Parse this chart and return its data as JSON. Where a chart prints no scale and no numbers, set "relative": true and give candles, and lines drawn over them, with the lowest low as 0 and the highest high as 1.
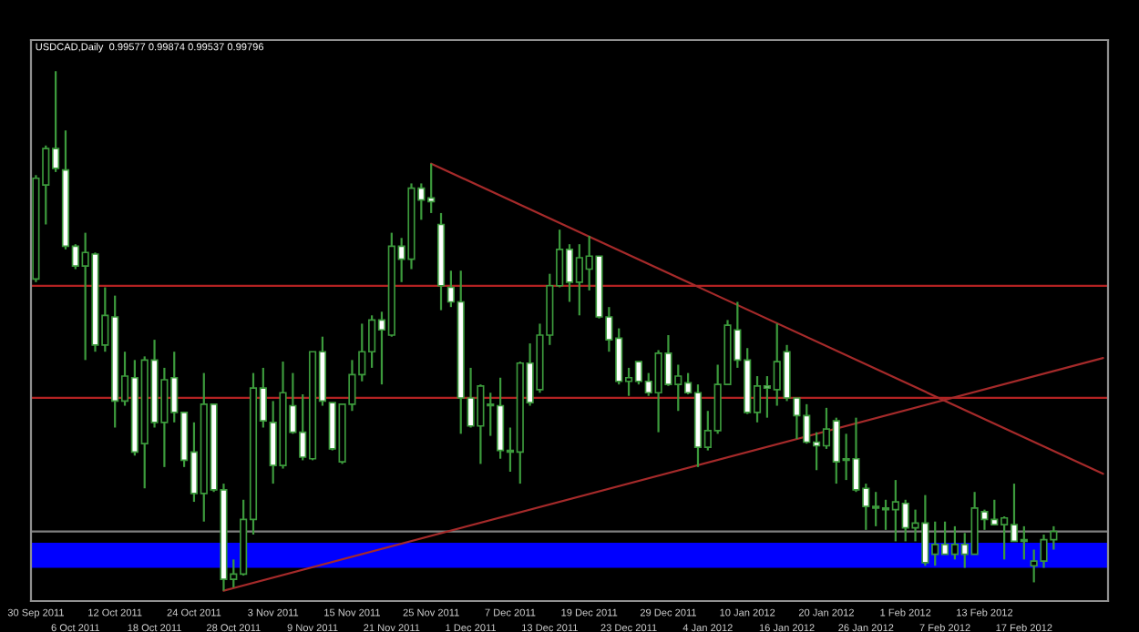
{
  "chart_data": {
    "type": "candlestick",
    "title": "USDCAD,Daily  0.99577 0.99874 0.99537 0.99796",
    "relative": true,
    "color": "#3c9a3c",
    "categories": [
      "30 Sep 2011",
      null,
      null,
      null,
      "6 Oct 2011",
      null,
      null,
      null,
      "12 Oct 2011",
      null,
      null,
      null,
      "18 Oct 2011",
      null,
      null,
      null,
      "24 Oct 2011",
      null,
      null,
      null,
      "28 Oct 2011",
      null,
      null,
      null,
      "3 Nov 2011",
      null,
      null,
      null,
      "9 Nov 2011",
      null,
      null,
      null,
      "15 Nov 2011",
      null,
      null,
      null,
      "21 Nov 2011",
      null,
      null,
      null,
      "25 Nov 2011",
      null,
      null,
      null,
      "1 Dec 2011",
      null,
      null,
      null,
      "7 Dec 2011",
      null,
      null,
      null,
      "13 Dec 2011",
      null,
      null,
      null,
      "19 Dec 2011",
      null,
      null,
      null,
      "23 Dec 2011",
      null,
      null,
      null,
      "29 Dec 2011",
      null,
      null,
      null,
      "4 Jan 2012",
      null,
      null,
      null,
      "10 Jan 2012",
      null,
      null,
      null,
      "16 Jan 2012",
      null,
      null,
      null,
      "20 Jan 2012",
      null,
      null,
      null,
      "26 Jan 2012",
      null,
      null,
      null,
      "1 Feb 2012",
      null,
      null,
      null,
      "7 Feb 2012",
      null,
      null,
      null,
      "13 Feb 2012",
      null,
      null,
      null,
      "17 Feb 2012",
      null,
      null,
      null,
      null,
      null,
      null,
      null,
      null
    ],
    "ohlc": [
      [
        0.6,
        0.8,
        0.594,
        0.794
      ],
      [
        0.781,
        0.857,
        0.705,
        0.851
      ],
      [
        0.851,
        1.0,
        0.806,
        0.813
      ],
      [
        0.81,
        0.886,
        0.657,
        0.663
      ],
      [
        0.663,
        0.667,
        0.619,
        0.625
      ],
      [
        0.625,
        0.689,
        0.444,
        0.651
      ],
      [
        0.648,
        0.651,
        0.46,
        0.473
      ],
      [
        0.473,
        0.584,
        0.46,
        0.53
      ],
      [
        0.527,
        0.568,
        0.314,
        0.365
      ],
      [
        0.365,
        0.46,
        0.356,
        0.413
      ],
      [
        0.41,
        0.444,
        0.26,
        0.267
      ],
      [
        0.283,
        0.451,
        0.197,
        0.444
      ],
      [
        0.444,
        0.483,
        0.314,
        0.324
      ],
      [
        0.324,
        0.429,
        0.238,
        0.406
      ],
      [
        0.41,
        0.46,
        0.324,
        0.343
      ],
      [
        0.343,
        0.343,
        0.238,
        0.251
      ],
      [
        0.267,
        0.324,
        0.171,
        0.187
      ],
      [
        0.187,
        0.419,
        0.133,
        0.359
      ],
      [
        0.359,
        0.359,
        0.19,
        0.194
      ],
      [
        0.194,
        0.206,
        0.0,
        0.022
      ],
      [
        0.022,
        0.06,
        0.006,
        0.032
      ],
      [
        0.032,
        0.175,
        0.029,
        0.137
      ],
      [
        0.137,
        0.419,
        0.108,
        0.39
      ],
      [
        0.39,
        0.429,
        0.314,
        0.327
      ],
      [
        0.324,
        0.365,
        0.206,
        0.241
      ],
      [
        0.241,
        0.441,
        0.235,
        0.381
      ],
      [
        0.356,
        0.419,
        0.302,
        0.305
      ],
      [
        0.305,
        0.378,
        0.251,
        0.257
      ],
      [
        0.254,
        0.46,
        0.251,
        0.46
      ],
      [
        0.46,
        0.489,
        0.356,
        0.365
      ],
      [
        0.362,
        0.362,
        0.27,
        0.273
      ],
      [
        0.248,
        0.359,
        0.244,
        0.359
      ],
      [
        0.359,
        0.444,
        0.346,
        0.416
      ],
      [
        0.416,
        0.514,
        0.403,
        0.46
      ],
      [
        0.46,
        0.53,
        0.429,
        0.521
      ],
      [
        0.521,
        0.537,
        0.397,
        0.502
      ],
      [
        0.492,
        0.689,
        0.489,
        0.663
      ],
      [
        0.663,
        0.679,
        0.594,
        0.638
      ],
      [
        0.638,
        0.784,
        0.619,
        0.775
      ],
      [
        0.775,
        0.784,
        0.714,
        0.752
      ],
      [
        0.756,
        0.822,
        0.727,
        0.749
      ],
      [
        0.705,
        0.727,
        0.54,
        0.587
      ],
      [
        0.584,
        0.616,
        0.546,
        0.556
      ],
      [
        0.556,
        0.616,
        0.302,
        0.371
      ],
      [
        0.371,
        0.429,
        0.314,
        0.317
      ],
      [
        0.317,
        0.397,
        0.244,
        0.394
      ],
      [
        0.359,
        0.381,
        0.298,
        0.356
      ],
      [
        0.356,
        0.41,
        0.254,
        0.27
      ],
      [
        0.27,
        0.314,
        0.229,
        0.267
      ],
      [
        0.267,
        0.441,
        0.206,
        0.438
      ],
      [
        0.438,
        0.476,
        0.356,
        0.362
      ],
      [
        0.387,
        0.514,
        0.381,
        0.492
      ],
      [
        0.492,
        0.61,
        0.473,
        0.587
      ],
      [
        0.587,
        0.695,
        0.584,
        0.657
      ],
      [
        0.657,
        0.667,
        0.556,
        0.594
      ],
      [
        0.594,
        0.667,
        0.53,
        0.641
      ],
      [
        0.619,
        0.683,
        0.578,
        0.644
      ],
      [
        0.644,
        0.644,
        0.524,
        0.527
      ],
      [
        0.527,
        0.546,
        0.46,
        0.483
      ],
      [
        0.486,
        0.505,
        0.397,
        0.403
      ],
      [
        0.403,
        0.429,
        0.375,
        0.41
      ],
      [
        0.441,
        0.441,
        0.397,
        0.403
      ],
      [
        0.403,
        0.419,
        0.375,
        0.381
      ],
      [
        0.381,
        0.463,
        0.305,
        0.457
      ],
      [
        0.457,
        0.492,
        0.394,
        0.397
      ],
      [
        0.397,
        0.435,
        0.346,
        0.413
      ],
      [
        0.4,
        0.419,
        0.378,
        0.381
      ],
      [
        0.381,
        0.397,
        0.238,
        0.276
      ],
      [
        0.276,
        0.346,
        0.27,
        0.308
      ],
      [
        0.308,
        0.435,
        0.302,
        0.397
      ],
      [
        0.397,
        0.521,
        0.397,
        0.511
      ],
      [
        0.502,
        0.556,
        0.429,
        0.444
      ],
      [
        0.444,
        0.467,
        0.34,
        0.343
      ],
      [
        0.343,
        0.413,
        0.324,
        0.394
      ],
      [
        0.394,
        0.413,
        0.333,
        0.39
      ],
      [
        0.387,
        0.514,
        0.356,
        0.441
      ],
      [
        0.46,
        0.473,
        0.365,
        0.371
      ],
      [
        0.371,
        0.371,
        0.292,
        0.337
      ],
      [
        0.337,
        0.359,
        0.283,
        0.286
      ],
      [
        0.286,
        0.305,
        0.232,
        0.279
      ],
      [
        0.279,
        0.352,
        0.273,
        0.311
      ],
      [
        0.327,
        0.333,
        0.206,
        0.248
      ],
      [
        0.254,
        0.302,
        0.213,
        0.251
      ],
      [
        0.254,
        0.333,
        0.19,
        0.194
      ],
      [
        0.197,
        0.206,
        0.117,
        0.162
      ],
      [
        0.162,
        0.19,
        0.124,
        0.159
      ],
      [
        0.159,
        0.175,
        0.117,
        0.156
      ],
      [
        0.156,
        0.213,
        0.095,
        0.171
      ],
      [
        0.168,
        0.175,
        0.095,
        0.121
      ],
      [
        0.121,
        0.156,
        0.095,
        0.13
      ],
      [
        0.13,
        0.184,
        0.048,
        0.054
      ],
      [
        0.07,
        0.133,
        0.048,
        0.089
      ],
      [
        0.089,
        0.133,
        0.07,
        0.07
      ],
      [
        0.07,
        0.124,
        0.06,
        0.089
      ],
      [
        0.089,
        0.111,
        0.044,
        0.07
      ],
      [
        0.07,
        0.19,
        0.07,
        0.159
      ],
      [
        0.152,
        0.156,
        0.117,
        0.137
      ],
      [
        0.137,
        0.175,
        0.127,
        0.127
      ],
      [
        0.127,
        0.143,
        0.06,
        0.14
      ],
      [
        0.127,
        0.206,
        0.095,
        0.095
      ],
      [
        0.098,
        0.124,
        0.06,
        0.095
      ],
      [
        0.048,
        0.079,
        0.016,
        0.057
      ],
      [
        0.057,
        0.108,
        0.044,
        0.098
      ],
      [
        0.098,
        0.124,
        0.079,
        0.114
      ],
      null,
      null,
      null,
      null,
      null
    ],
    "series": [
      {
        "type": "line",
        "color": "#a52a2a",
        "values": [
          null,
          null,
          null,
          null,
          null,
          null,
          null,
          null,
          null,
          null,
          null,
          null,
          null,
          null,
          null,
          null,
          null,
          null,
          null,
          null,
          null,
          null,
          null,
          null,
          null,
          null,
          null,
          null,
          null,
          null,
          null,
          null,
          null,
          null,
          null,
          null,
          null,
          null,
          null,
          null,
          0.822,
          null,
          null,
          null,
          null,
          null,
          null,
          null,
          null,
          null,
          null,
          null,
          null,
          null,
          null,
          null,
          null,
          null,
          null,
          null,
          null,
          null,
          null,
          null,
          null,
          null,
          null,
          null,
          null,
          null,
          null,
          null,
          null,
          null,
          null,
          null,
          null,
          null,
          null,
          null,
          null,
          null,
          null,
          null,
          null,
          null,
          null,
          null,
          null,
          null,
          null,
          null,
          null,
          null,
          null,
          null,
          null,
          null,
          null,
          null,
          null,
          null,
          null,
          null,
          null,
          null,
          null,
          null,
          0.225
        ]
      },
      {
        "type": "line",
        "color": "#a52a2a",
        "values": [
          null,
          null,
          null,
          null,
          null,
          null,
          null,
          null,
          null,
          null,
          null,
          null,
          null,
          null,
          null,
          null,
          null,
          null,
          null,
          0.0,
          null,
          null,
          null,
          null,
          null,
          null,
          null,
          null,
          null,
          null,
          null,
          null,
          null,
          null,
          null,
          null,
          null,
          null,
          null,
          null,
          null,
          null,
          null,
          null,
          null,
          null,
          null,
          null,
          null,
          null,
          null,
          null,
          null,
          null,
          null,
          null,
          null,
          null,
          null,
          null,
          null,
          null,
          null,
          null,
          null,
          null,
          null,
          null,
          null,
          null,
          null,
          null,
          null,
          null,
          null,
          null,
          null,
          null,
          null,
          null,
          null,
          null,
          null,
          null,
          null,
          null,
          null,
          null,
          null,
          null,
          null,
          null,
          null,
          null,
          null,
          null,
          null,
          null,
          null,
          null,
          null,
          null,
          null,
          null,
          null,
          null,
          null,
          null,
          0.448
        ]
      }
    ],
    "ref_lines": [
      {
        "axis": "y",
        "value": 0.587,
        "color": "#b22222"
      },
      {
        "axis": "y",
        "value": 0.371,
        "color": "#b22222"
      },
      {
        "axis": "y",
        "value": 0.114,
        "color": "#808080"
      }
    ],
    "bands": [
      {
        "axis": "y",
        "from": 0.044,
        "to": 0.092,
        "color": "#0000ff"
      }
    ]
  }
}
